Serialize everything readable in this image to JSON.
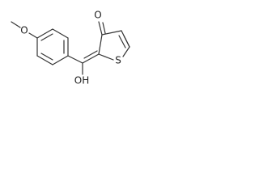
{
  "labels": {
    "methoxy_oxygen": "O",
    "ketone_oxygen": "O",
    "sulfur": "S",
    "hydroxyl": "OH"
  }
}
